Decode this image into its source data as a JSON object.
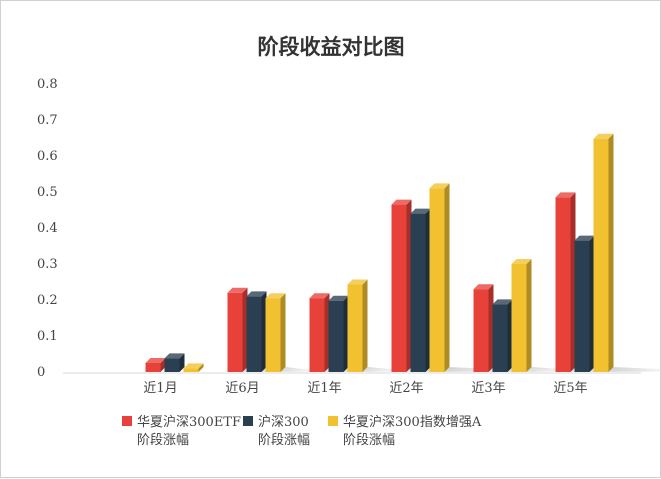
{
  "chart_data": {
    "type": "bar",
    "title": "阶段收益对比图",
    "categories": [
      "近1月",
      "近6月",
      "近1年",
      "近2年",
      "近3年",
      "近5年"
    ],
    "series": [
      {
        "name": "华夏沪深300ETF 阶段涨幅",
        "name_lines": [
          "华夏沪深300ETF",
          "阶段涨幅"
        ],
        "color": "#e8413a",
        "values": [
          0.025,
          0.22,
          0.205,
          0.465,
          0.23,
          0.485
        ]
      },
      {
        "name": "沪深300 阶段涨幅",
        "name_lines": [
          "沪深300",
          "阶段涨幅"
        ],
        "color": "#2b3f52",
        "values": [
          0.038,
          0.21,
          0.198,
          0.44,
          0.188,
          0.365
        ]
      },
      {
        "name": "华夏沪深300指数增强A 阶段涨幅",
        "name_lines": [
          "华夏沪深300指数增强A",
          "阶段涨幅"
        ],
        "color": "#f2c130",
        "values": [
          0.01,
          0.205,
          0.243,
          0.51,
          0.3,
          0.648
        ]
      }
    ],
    "ylim": [
      0,
      0.8
    ],
    "yticks": [
      "0",
      "0.1",
      "0.2",
      "0.3",
      "0.4",
      "0.5",
      "0.6",
      "0.7",
      "0.8"
    ],
    "grid": false,
    "legend": "bottom"
  }
}
